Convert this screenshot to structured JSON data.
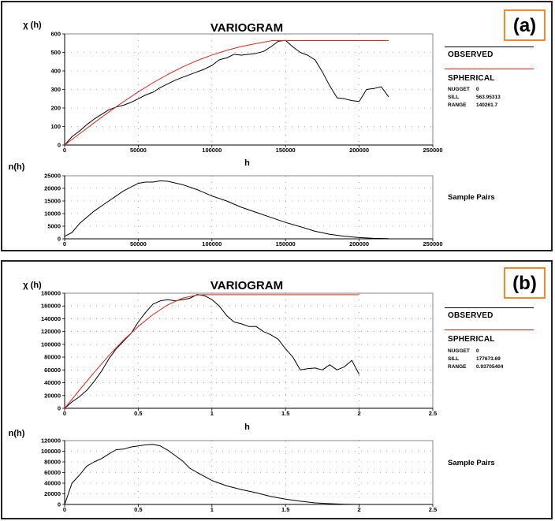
{
  "panels": [
    {
      "tag": "(a)",
      "title": "VARIOGRAM",
      "legend": {
        "observed_label": "OBSERVED",
        "model_label": "SPHERICAL",
        "params": [
          {
            "key": "NUGGET",
            "value": "0"
          },
          {
            "key": "SILL",
            "value": "563.95313"
          },
          {
            "key": "RANGE",
            "value": "140261.7"
          }
        ]
      },
      "pairs_label": "Sample Pairs",
      "colors": {
        "observed": "#000000",
        "model": "#e0261b"
      }
    },
    {
      "tag": "(b)",
      "title": "VARIOGRAM",
      "legend": {
        "observed_label": "OBSERVED",
        "model_label": "SPHERICAL",
        "params": [
          {
            "key": "NUGGET",
            "value": "0"
          },
          {
            "key": "SILL",
            "value": "177673.69"
          },
          {
            "key": "RANGE",
            "value": "0.93705404"
          }
        ]
      },
      "pairs_label": "Sample Pairs",
      "colors": {
        "observed": "#000000",
        "model": "#e0261b"
      }
    }
  ],
  "chart_data": [
    {
      "type": "line",
      "panel": "a",
      "title": "VARIOGRAM",
      "ylabel": "χ (h)",
      "xlabel": "h",
      "xlim": [
        0,
        250000
      ],
      "ylim": [
        0,
        600
      ],
      "xticks": [
        0,
        50000,
        100000,
        150000,
        200000,
        250000
      ],
      "xtick_labels": [
        "0",
        "50000",
        "100000",
        "150000",
        "200000",
        "250000"
      ],
      "yticks": [
        0,
        100,
        200,
        300,
        400,
        500,
        600
      ],
      "ytick_labels": [
        "0",
        "100",
        "200",
        "300",
        "400",
        "500",
        "600"
      ],
      "series": [
        {
          "name": "OBSERVED",
          "x": [
            0,
            5000,
            10000,
            15000,
            20000,
            25000,
            30000,
            35000,
            40000,
            45000,
            50000,
            55000,
            60000,
            65000,
            70000,
            75000,
            80000,
            85000,
            90000,
            95000,
            100000,
            105000,
            110000,
            115000,
            120000,
            125000,
            130000,
            135000,
            140000,
            145000,
            150000,
            155000,
            160000,
            165000,
            170000,
            175000,
            180000,
            185000,
            190000,
            195000,
            200000,
            205000,
            210000,
            215000,
            220000
          ],
          "values": [
            0,
            45,
            75,
            110,
            140,
            165,
            190,
            205,
            215,
            230,
            250,
            270,
            285,
            310,
            330,
            350,
            365,
            380,
            395,
            410,
            430,
            460,
            470,
            490,
            485,
            490,
            495,
            505,
            530,
            560,
            565,
            530,
            500,
            485,
            460,
            395,
            320,
            255,
            250,
            240,
            235,
            300,
            305,
            315,
            260
          ]
        },
        {
          "name": "SPHERICAL",
          "x": [
            0,
            10000,
            20000,
            30000,
            40000,
            50000,
            60000,
            70000,
            80000,
            90000,
            100000,
            110000,
            120000,
            130000,
            140000,
            140261.7,
            160000,
            180000,
            200000,
            220000
          ],
          "values": [
            0,
            60,
            120,
            178,
            234,
            287,
            336,
            381,
            421,
            456,
            486,
            511,
            532,
            548,
            562,
            563.95,
            563.95,
            563.95,
            563.95,
            563.95
          ]
        }
      ]
    },
    {
      "type": "line",
      "panel": "a",
      "title": "Sample Pairs",
      "ylabel": "n(h)",
      "xlim": [
        0,
        250000
      ],
      "ylim": [
        0,
        25000
      ],
      "xticks": [
        0,
        50000,
        100000,
        150000,
        200000,
        250000
      ],
      "xtick_labels": [
        "0",
        "50000",
        "100000",
        "150000",
        "200000",
        "250000"
      ],
      "yticks": [
        0,
        5000,
        10000,
        15000,
        20000,
        25000
      ],
      "ytick_labels": [
        "0",
        "5000",
        "10000",
        "15000",
        "20000",
        "25000"
      ],
      "series": [
        {
          "name": "Sample Pairs",
          "x": [
            0,
            5000,
            10000,
            20000,
            30000,
            40000,
            50000,
            55000,
            60000,
            65000,
            70000,
            80000,
            90000,
            100000,
            110000,
            120000,
            130000,
            140000,
            150000,
            160000,
            170000,
            180000,
            190000,
            200000,
            210000,
            220000
          ],
          "values": [
            1000,
            2500,
            6000,
            11000,
            15000,
            19000,
            22000,
            22500,
            22500,
            23000,
            22800,
            21500,
            19500,
            17000,
            15000,
            12500,
            10500,
            8500,
            6500,
            4800,
            3000,
            1800,
            1000,
            500,
            200,
            100
          ]
        }
      ]
    },
    {
      "type": "line",
      "panel": "b",
      "title": "VARIOGRAM",
      "ylabel": "χ (h)",
      "xlabel": "h",
      "xlim": [
        0,
        2.5
      ],
      "ylim": [
        0,
        180000
      ],
      "xticks": [
        0,
        0.5,
        1,
        1.5,
        2,
        2.5
      ],
      "xtick_labels": [
        "0",
        "0.5",
        "1",
        "1.5",
        "2",
        "2.5"
      ],
      "yticks": [
        0,
        20000,
        40000,
        60000,
        80000,
        100000,
        120000,
        140000,
        160000,
        180000
      ],
      "ytick_labels": [
        "0",
        "20000",
        "40000",
        "60000",
        "80000",
        "100000",
        "120000",
        "140000",
        "160000",
        "180000"
      ],
      "series": [
        {
          "name": "OBSERVED",
          "x": [
            0,
            0.05,
            0.1,
            0.15,
            0.2,
            0.25,
            0.3,
            0.35,
            0.4,
            0.45,
            0.5,
            0.55,
            0.6,
            0.65,
            0.7,
            0.75,
            0.8,
            0.85,
            0.9,
            0.95,
            1.0,
            1.05,
            1.1,
            1.15,
            1.2,
            1.25,
            1.3,
            1.35,
            1.4,
            1.45,
            1.5,
            1.55,
            1.6,
            1.65,
            1.7,
            1.75,
            1.8,
            1.85,
            1.9,
            1.95,
            2.0
          ],
          "values": [
            0,
            10000,
            18000,
            28000,
            42000,
            58000,
            77000,
            93000,
            105000,
            117000,
            135000,
            150000,
            163000,
            168000,
            170000,
            168000,
            170000,
            172000,
            178000,
            176000,
            170000,
            160000,
            145000,
            135000,
            132000,
            128000,
            128000,
            120000,
            115000,
            108000,
            93000,
            80000,
            60000,
            62000,
            63000,
            60000,
            68000,
            60000,
            65000,
            75000,
            53000
          ]
        },
        {
          "name": "SPHERICAL",
          "x": [
            0,
            0.1,
            0.2,
            0.3,
            0.4,
            0.5,
            0.6,
            0.7,
            0.8,
            0.9,
            0.93705404,
            1.2,
            1.5,
            1.8,
            2.0
          ],
          "values": [
            0,
            28300,
            56000,
            82400,
            106600,
            128000,
            146700,
            161800,
            172200,
            177100,
            177673.69,
            177673.69,
            177673.69,
            177673.69,
            177673.69
          ]
        }
      ]
    },
    {
      "type": "line",
      "panel": "b",
      "title": "Sample Pairs",
      "ylabel": "n(h)",
      "xlim": [
        0,
        2.5
      ],
      "ylim": [
        0,
        120000
      ],
      "xticks": [
        0,
        0.5,
        1,
        1.5,
        2,
        2.5
      ],
      "xtick_labels": [
        "0",
        "0.5",
        "1",
        "1.5",
        "2",
        "2.5"
      ],
      "yticks": [
        0,
        20000,
        40000,
        60000,
        80000,
        100000,
        120000
      ],
      "ytick_labels": [
        "0",
        "20000",
        "40000",
        "60000",
        "80000",
        "100000",
        "120000"
      ],
      "series": [
        {
          "name": "Sample Pairs",
          "x": [
            0,
            0.05,
            0.1,
            0.15,
            0.2,
            0.25,
            0.3,
            0.35,
            0.4,
            0.45,
            0.5,
            0.55,
            0.6,
            0.65,
            0.7,
            0.75,
            0.8,
            0.85,
            0.9,
            1.0,
            1.1,
            1.2,
            1.3,
            1.4,
            1.5,
            1.6,
            1.7,
            1.8,
            1.9,
            2.0
          ],
          "values": [
            0,
            40000,
            55000,
            72000,
            80000,
            86000,
            95000,
            103000,
            104000,
            108000,
            110000,
            112000,
            113000,
            110000,
            102000,
            92000,
            82000,
            68000,
            60000,
            45000,
            35000,
            28000,
            22000,
            15000,
            10000,
            6000,
            3000,
            1500,
            500,
            0
          ]
        }
      ]
    }
  ]
}
